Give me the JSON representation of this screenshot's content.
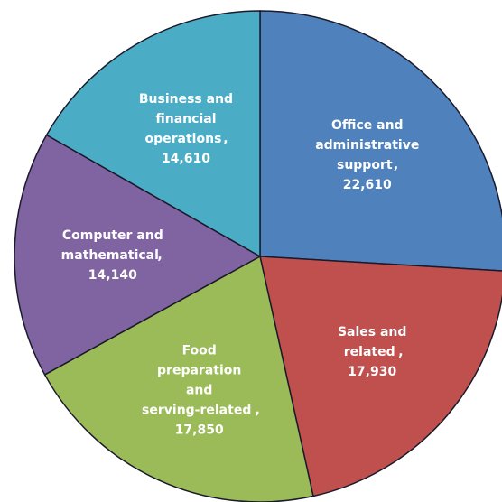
{
  "chart_data": {
    "type": "pie",
    "categories": [
      "Office and administrative support",
      "Sales and related",
      "Food preparation and serving-related",
      "Computer and mathematical",
      "Business and financial operations"
    ],
    "values": [
      22610,
      17930,
      17850,
      14140,
      14610
    ],
    "value_labels": [
      "22,610",
      "17,930",
      "17,850",
      "14,140",
      "14,610"
    ],
    "separator": ",",
    "colors": [
      "#4f81bd",
      "#c0504d",
      "#9bbb59",
      "#8064a2",
      "#4bacc6"
    ]
  }
}
